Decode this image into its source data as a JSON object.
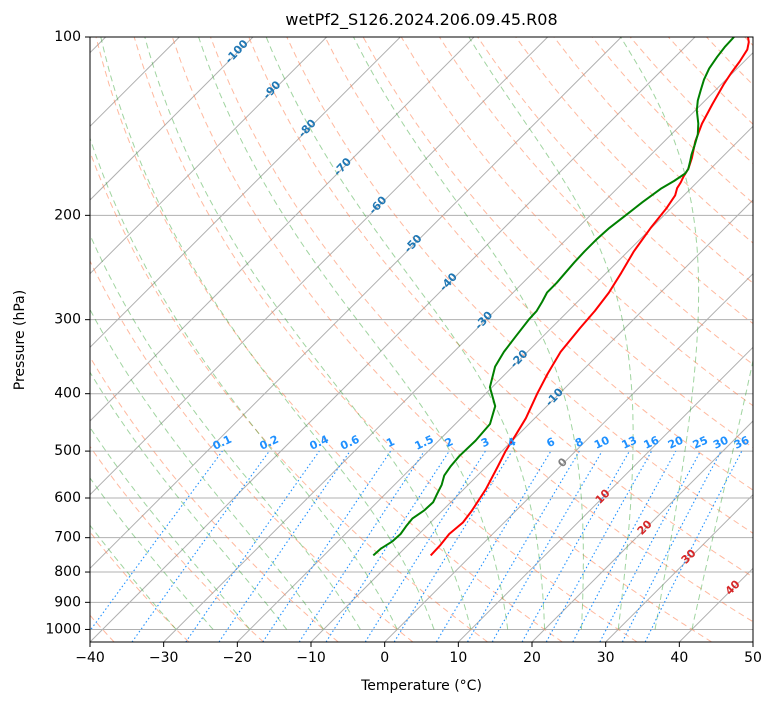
{
  "chart_data": {
    "type": "line",
    "chart_kind": "skew-T log-P diagram",
    "title": "wetPf2_S126.2024.206.09.45.R08",
    "xlabel": "Temperature (°C)",
    "ylabel": "Pressure (hPa)",
    "xlim": [
      -40,
      50
    ],
    "ylim": [
      1050,
      100
    ],
    "y_scale": "log",
    "grid": true,
    "legend": "none",
    "x_ticks": [
      "-40",
      "-30",
      "-20",
      "-10",
      "0",
      "10",
      "20",
      "30",
      "40",
      "50"
    ],
    "y_ticks": [
      "100",
      "200",
      "300",
      "400",
      "500",
      "600",
      "700",
      "800",
      "900",
      "1000"
    ],
    "series": [
      {
        "color": "#ff0000",
        "x": [
          -5.5,
          -5.6,
          -5.9,
          -5.6,
          -6.0,
          -7.0,
          -8.5,
          -9.5,
          -10.3,
          -11.2,
          -13.0,
          -14.3,
          -15.5,
          -16.1,
          -16.4,
          -17.0,
          -18.0,
          -19.2,
          -20.1,
          -20.6,
          -21.2,
          -21.9,
          -22.2,
          -22.6,
          -23.0,
          -24.0,
          -25.8,
          -27.3,
          -28.5,
          -29.7,
          -30.2,
          -30.6,
          -31.2,
          -32.0,
          -32.8
        ],
        "y": [
          750,
          720,
          690,
          660,
          630,
          580,
          530,
          500,
          470,
          440,
          400,
          370,
          340,
          310,
          290,
          270,
          250,
          230,
          210,
          195,
          185,
          180,
          176,
          172,
          167,
          160,
          150,
          140,
          130,
          120,
          115,
          110,
          105,
          102,
          100
        ]
      },
      {
        "color": "#008000",
        "x": [
          -13.3,
          -13.2,
          -12.6,
          -12.5,
          -12.8,
          -13.0,
          -12.5,
          -12.4,
          -13.0,
          -13.6,
          -14.5,
          -14.9,
          -15.1,
          -15.0,
          -15.3,
          -17.0,
          -20.3,
          -22.4,
          -23.2,
          -23.7,
          -24.2,
          -24.3,
          -24.8,
          -25.4,
          -25.4,
          -25.6,
          -25.8,
          -25.9,
          -25.9,
          -25.7,
          -25.2,
          -24.7,
          -24.0,
          -23.3,
          -22.8,
          -23.0,
          -23.8,
          -24.5,
          -25.4,
          -26.4,
          -27.8,
          -29.8,
          -31.0,
          -32.0,
          -33.0,
          -33.8,
          -34.3,
          -34.6,
          -34.7
        ],
        "y": [
          750,
          730,
          710,
          690,
          670,
          650,
          630,
          610,
          590,
          570,
          550,
          530,
          510,
          480,
          450,
          420,
          390,
          360,
          340,
          320,
          300,
          290,
          280,
          270,
          260,
          250,
          240,
          230,
          220,
          210,
          200,
          190,
          180,
          175,
          170,
          167,
          162,
          158,
          152,
          146,
          140,
          133,
          128,
          123,
          118,
          113,
          108,
          104,
          100
        ]
      }
    ],
    "dry_adiabat_labels": [
      "-100",
      "-90",
      "-80",
      "-70",
      "-60",
      "-50",
      "-40",
      "-30",
      "-20",
      "-10"
    ],
    "moist_adiabat_labels": [
      "0",
      "10",
      "20",
      "30",
      "40"
    ],
    "mixing_ratio_labels": [
      "0.1",
      "0.2",
      "0.4",
      "0.6",
      "1",
      "1.5",
      "2",
      "3",
      "4",
      "6",
      "8",
      "10",
      "13",
      "16",
      "20",
      "25",
      "30",
      "36"
    ],
    "colors": {
      "isotherm": "#b0b0b0",
      "dry_adiabat": "#ff7f50",
      "moist_adiabat": "#2ca02c",
      "mixing_ratio": "#1e90ff",
      "dry_label": "#1f77b4",
      "moist_label": "#d62728",
      "moist_label_zero": "#808080",
      "mixing_label": "#1e90ff",
      "curve_temperature": "#ff0000",
      "curve_dewpoint": "#008000"
    }
  }
}
